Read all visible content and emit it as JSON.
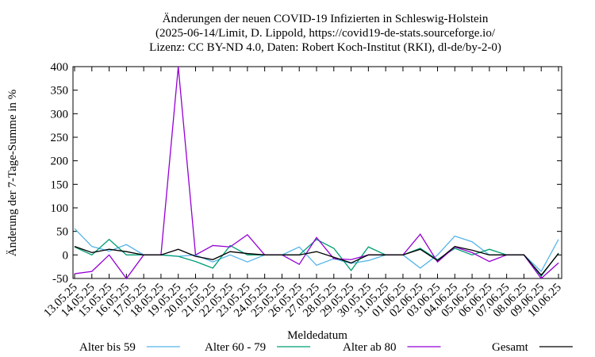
{
  "chart_data": {
    "type": "line",
    "title": [
      "Änderungen der neuen COVID-19 Infizierten in Schleswig-Holstein",
      "(2025-06-14/Limit, D. Lippold, https://covid19-de-stats.sourceforge.io/",
      "Lizenz: CC BY-ND 4.0, Daten: Robert Koch-Institut (RKI), dl-de/by-2-0)"
    ],
    "x_label": "Meldedatum",
    "y_label": "Änderung der 7-Tage-Summe in %",
    "categories": [
      "13.05.25",
      "14.05.25",
      "15.05.25",
      "16.05.25",
      "17.05.25",
      "18.05.25",
      "19.05.25",
      "20.05.25",
      "21.05.25",
      "22.05.25",
      "23.05.25",
      "24.05.25",
      "25.05.25",
      "26.05.25",
      "27.05.25",
      "28.05.25",
      "29.05.25",
      "30.05.25",
      "31.05.25",
      "01.06.25",
      "02.06.25",
      "03.06.25",
      "04.06.25",
      "05.06.25",
      "06.06.25",
      "07.06.25",
      "08.06.25",
      "09.06.25",
      "10.06.25"
    ],
    "series": [
      {
        "name": "Alter bis 59",
        "color": "#56b4e9",
        "values": [
          56,
          18,
          8,
          22,
          0,
          0,
          -3,
          0,
          -15,
          0,
          -15,
          0,
          0,
          17,
          -22,
          -8,
          -18,
          -12,
          0,
          0,
          -28,
          0,
          40,
          28,
          0,
          0,
          0,
          -35,
          33
        ]
      },
      {
        "name": "Alter 60 - 79",
        "color": "#009e73",
        "values": [
          17,
          0,
          33,
          0,
          0,
          0,
          -3,
          -14,
          -28,
          20,
          0,
          0,
          0,
          0,
          33,
          14,
          -33,
          17,
          0,
          0,
          14,
          -10,
          14,
          0,
          12,
          0,
          0,
          -45,
          4
        ]
      },
      {
        "name": "Alter ab 80",
        "color": "#9400d3",
        "values": [
          -40,
          -35,
          0,
          -50,
          0,
          0,
          400,
          0,
          20,
          17,
          43,
          0,
          0,
          -20,
          37,
          -8,
          -10,
          0,
          0,
          0,
          44,
          -15,
          17,
          5,
          -14,
          0,
          0,
          -50,
          -17
        ]
      },
      {
        "name": "Gesamt",
        "color": "#000000",
        "values": [
          18,
          5,
          12,
          7,
          0,
          0,
          12,
          -3,
          -10,
          7,
          3,
          0,
          0,
          0,
          7,
          -5,
          -17,
          0,
          0,
          0,
          12,
          -12,
          18,
          10,
          0,
          0,
          0,
          -43,
          3
        ]
      }
    ],
    "ylim": [
      -50,
      400
    ],
    "yticks": [
      -50,
      0,
      50,
      100,
      150,
      200,
      250,
      300,
      350,
      400
    ],
    "legend": "bottom"
  }
}
